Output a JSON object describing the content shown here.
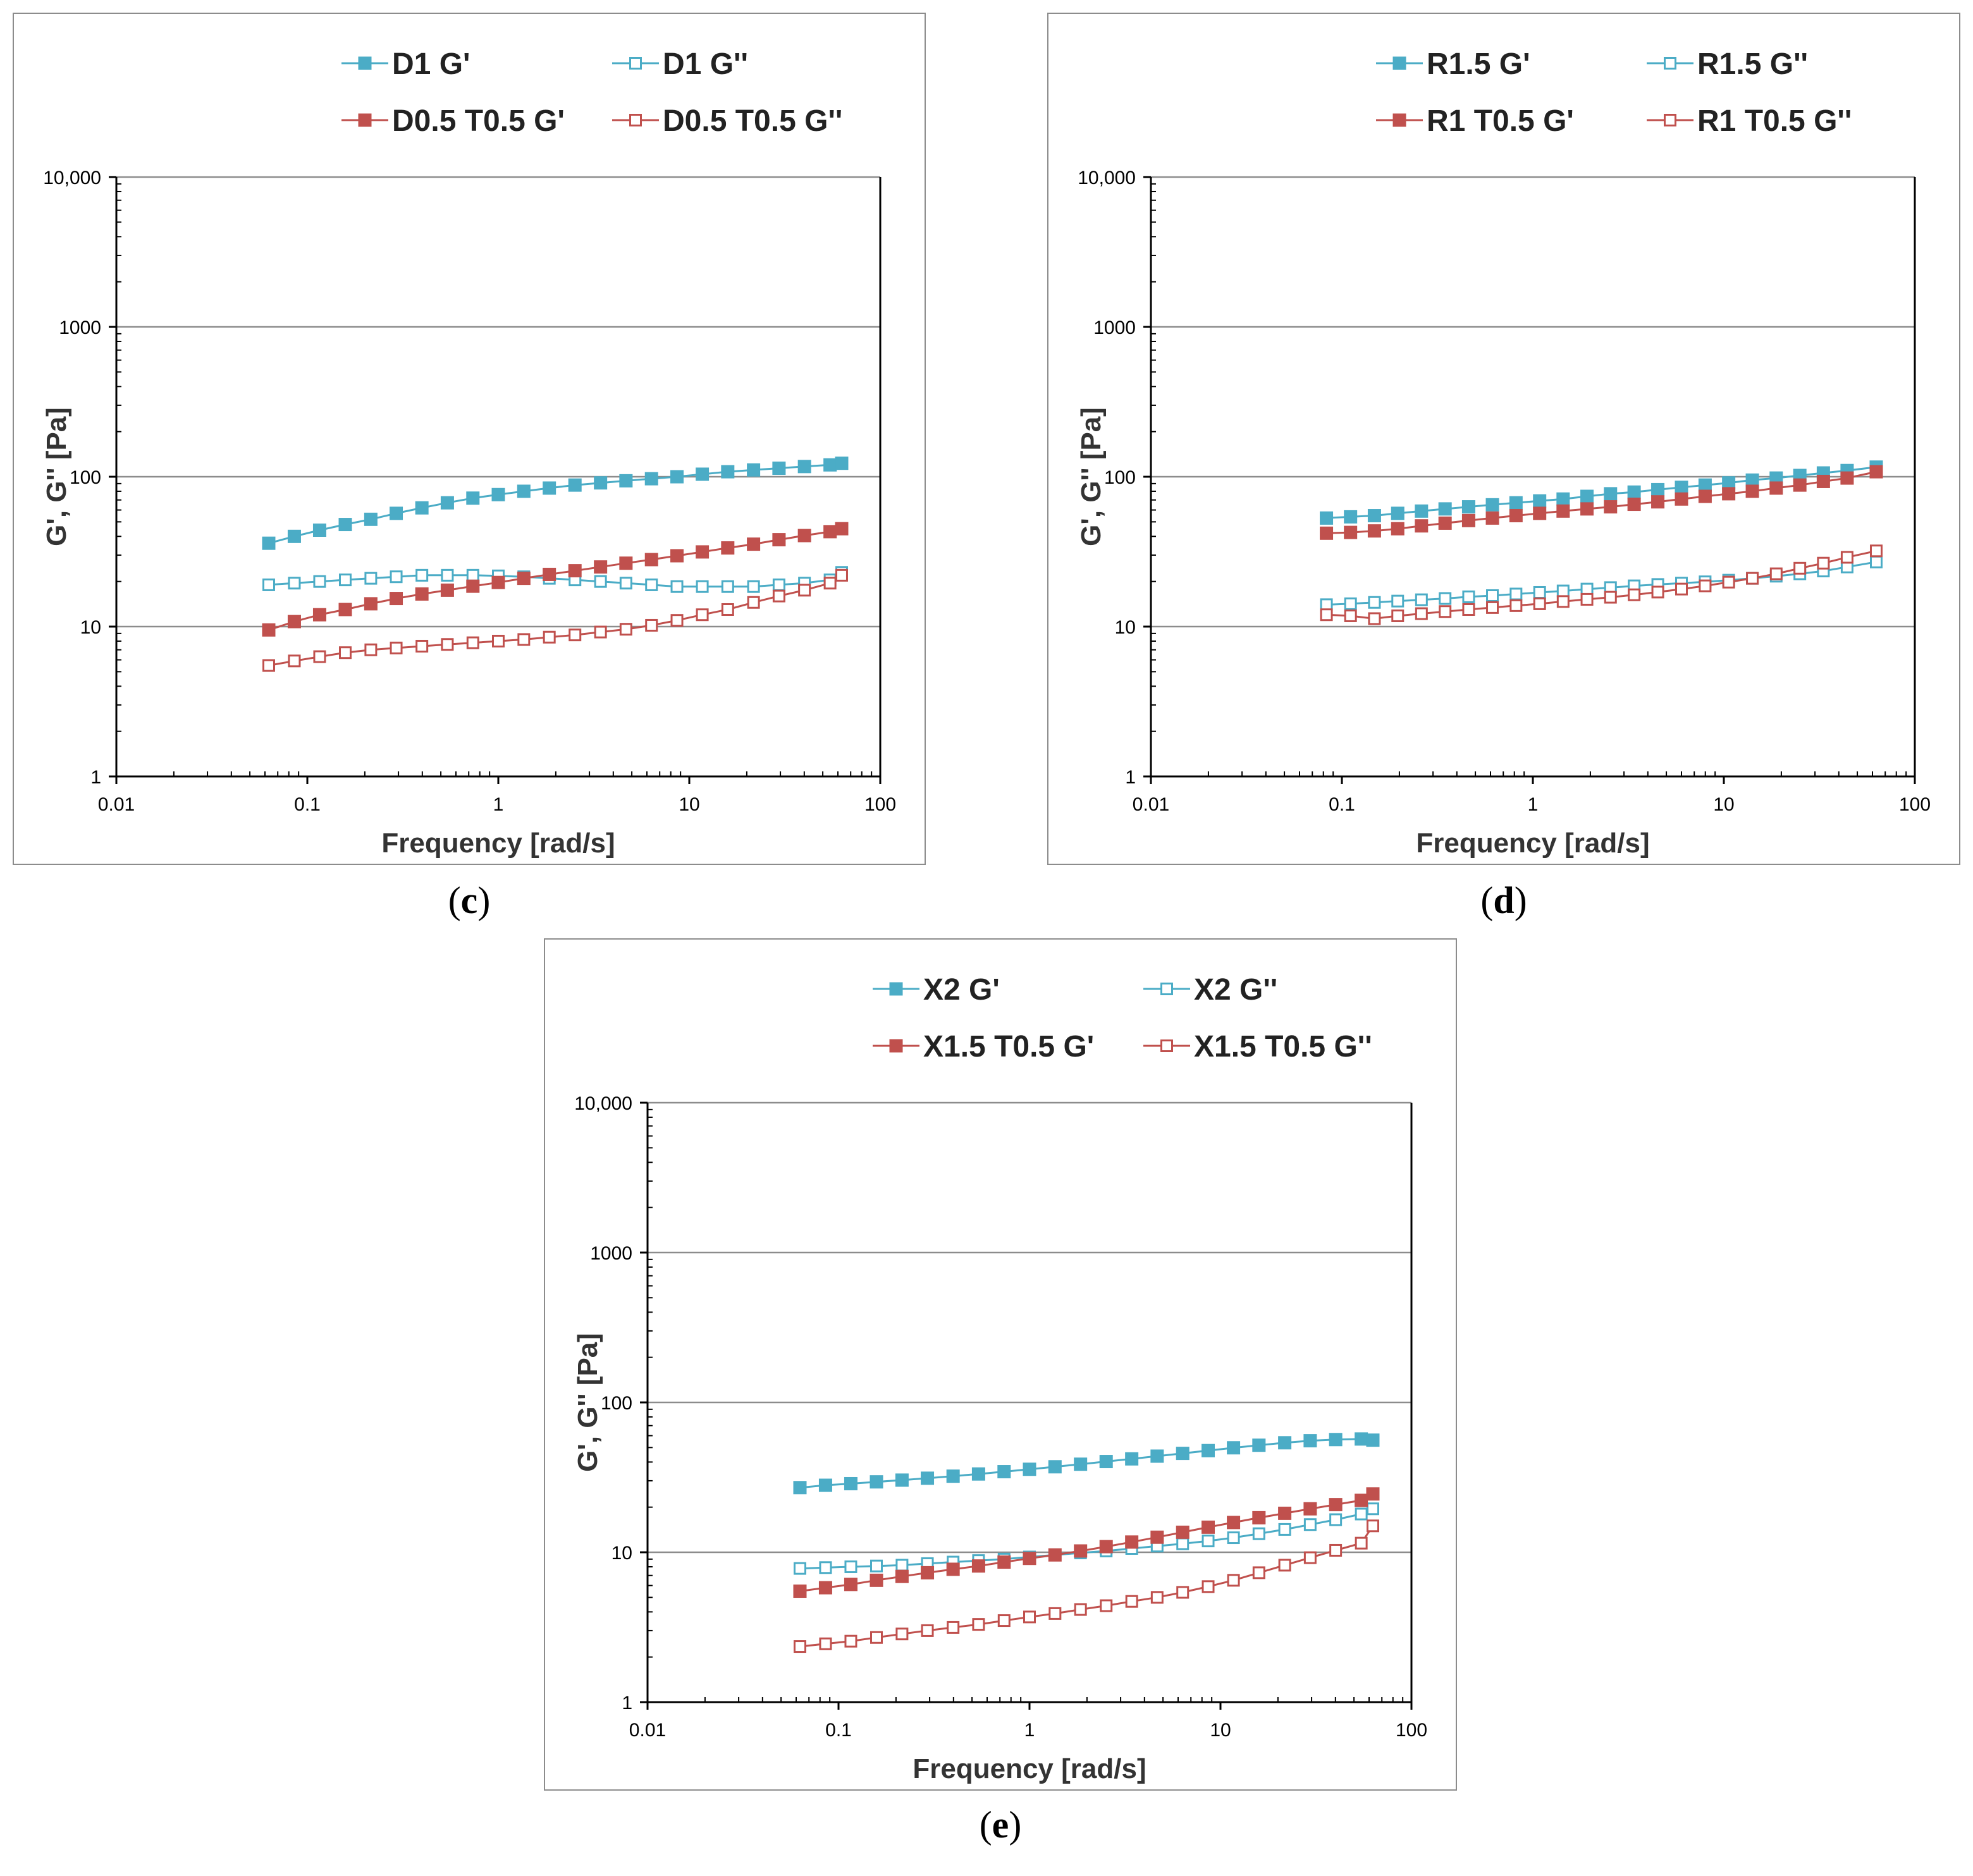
{
  "figure": {
    "panel_labels": [
      "c",
      "d",
      "e"
    ],
    "paren_open": "(",
    "paren_close": ")"
  },
  "colors": {
    "blue": "#4bacc6",
    "red": "#c0504d",
    "grid": "#8c8c8c",
    "axis": "#000000"
  },
  "chart_data": [
    {
      "type": "line",
      "panel": "c",
      "xlabel": "Frequency [rad/s]",
      "ylabel": "G', G'' [Pa]",
      "xscale": "log",
      "yscale": "log",
      "xlim": [
        0.01,
        100
      ],
      "ylim": [
        1,
        10000
      ],
      "xticks": [
        0.01,
        0.1,
        1,
        10,
        100
      ],
      "xtick_labels": [
        "0.01",
        "0.1",
        "1",
        "10",
        "100"
      ],
      "yticks": [
        1,
        10,
        100,
        1000,
        10000
      ],
      "ytick_labels": [
        "1",
        "10",
        "100",
        "1000",
        "10,000"
      ],
      "grid": "horizontal major lines",
      "legend_position": "top",
      "x": [
        0.0628,
        0.0855,
        0.116,
        0.158,
        0.215,
        0.292,
        0.398,
        0.541,
        0.736,
        1.0,
        1.36,
        1.85,
        2.52,
        3.43,
        4.66,
        6.34,
        8.62,
        11.7,
        15.9,
        21.7,
        29.5,
        40.1,
        54.6,
        62.8
      ],
      "series": [
        {
          "name": "D1 G'",
          "color": "blue",
          "filled": true,
          "values": [
            36,
            40,
            44,
            48,
            52,
            57,
            62,
            67,
            72,
            76,
            80,
            84,
            88,
            91,
            94,
            97,
            100,
            104,
            108,
            111,
            114,
            117,
            120,
            123
          ]
        },
        {
          "name": "D1 G''",
          "color": "blue",
          "filled": false,
          "values": [
            19,
            19.5,
            20,
            20.5,
            21,
            21.5,
            22,
            22,
            22,
            21.8,
            21.5,
            21,
            20.5,
            20,
            19.5,
            19,
            18.5,
            18.5,
            18.5,
            18.5,
            19,
            19.5,
            20.5,
            23
          ]
        },
        {
          "name": "D0.5 T0.5 G'",
          "color": "red",
          "filled": true,
          "values": [
            9.5,
            10.8,
            12,
            13,
            14.2,
            15.4,
            16.5,
            17.5,
            18.6,
            19.7,
            21,
            22.3,
            23.6,
            25,
            26.5,
            28,
            29.7,
            31.5,
            33.5,
            35.5,
            38,
            40.5,
            43,
            45
          ]
        },
        {
          "name": "D0.5 T0.5 G''",
          "color": "red",
          "filled": false,
          "values": [
            5.5,
            5.9,
            6.3,
            6.7,
            7.0,
            7.2,
            7.4,
            7.6,
            7.8,
            8.0,
            8.2,
            8.5,
            8.8,
            9.2,
            9.6,
            10.2,
            11,
            12,
            13,
            14.5,
            16,
            17.5,
            19.5,
            22
          ]
        }
      ]
    },
    {
      "type": "line",
      "panel": "d",
      "xlabel": "Frequency [rad/s]",
      "ylabel": "G', G'' [Pa]",
      "xscale": "log",
      "yscale": "log",
      "xlim": [
        0.01,
        100
      ],
      "ylim": [
        1,
        10000
      ],
      "xticks": [
        0.01,
        0.1,
        1,
        10,
        100
      ],
      "xtick_labels": [
        "0.01",
        "0.1",
        "1",
        "10",
        "100"
      ],
      "yticks": [
        1,
        10,
        100,
        1000,
        10000
      ],
      "ytick_labels": [
        "1",
        "10",
        "100",
        "1000",
        "10,000"
      ],
      "grid": "horizontal major lines",
      "legend_position": "top",
      "x": [
        0.083,
        0.111,
        0.148,
        0.196,
        0.261,
        0.347,
        0.461,
        0.614,
        0.816,
        1.085,
        1.44,
        1.92,
        2.55,
        3.39,
        4.51,
        6.0,
        7.98,
        10.6,
        14.1,
        18.8,
        25.0,
        33.2,
        44.2,
        62.8
      ],
      "series": [
        {
          "name": "R1.5 G'",
          "color": "blue",
          "filled": true,
          "values": [
            53,
            54,
            55,
            57,
            59,
            61,
            63,
            65,
            67,
            69,
            71,
            74,
            77,
            79,
            82,
            85,
            88,
            91,
            95,
            98,
            102,
            106,
            110,
            116
          ]
        },
        {
          "name": "R1.5 G''",
          "color": "blue",
          "filled": false,
          "values": [
            14,
            14.2,
            14.5,
            14.8,
            15.1,
            15.4,
            15.8,
            16.1,
            16.5,
            16.9,
            17.3,
            17.8,
            18.2,
            18.7,
            19.1,
            19.5,
            19.9,
            20.4,
            21,
            21.7,
            22.5,
            23.5,
            25,
            27
          ]
        },
        {
          "name": "R1 T0.5 G'",
          "color": "red",
          "filled": true,
          "values": [
            42,
            42.5,
            43.5,
            45,
            47,
            49,
            51,
            53,
            55,
            57,
            59,
            61,
            63,
            65.5,
            68,
            71,
            74,
            77,
            80,
            84,
            88,
            93,
            98,
            108
          ]
        },
        {
          "name": "R1 T0.5 G''",
          "color": "red",
          "filled": false,
          "values": [
            12,
            11.8,
            11.3,
            11.8,
            12.2,
            12.6,
            13,
            13.4,
            13.8,
            14.2,
            14.7,
            15.2,
            15.7,
            16.3,
            17,
            17.8,
            18.7,
            19.8,
            21,
            22.5,
            24.5,
            26.5,
            29,
            32
          ]
        }
      ]
    },
    {
      "type": "line",
      "panel": "e",
      "xlabel": "Frequency [rad/s]",
      "ylabel": "G', G'' [Pa]",
      "xscale": "log",
      "yscale": "log",
      "xlim": [
        0.01,
        100
      ],
      "ylim": [
        1,
        10000
      ],
      "xticks": [
        0.01,
        0.1,
        1,
        10,
        100
      ],
      "xtick_labels": [
        "0.01",
        "0.1",
        "1",
        "10",
        "100"
      ],
      "yticks": [
        1,
        10,
        100,
        1000,
        10000
      ],
      "ytick_labels": [
        "1",
        "10",
        "100",
        "1000",
        "10,000"
      ],
      "grid": "horizontal major lines",
      "legend_position": "top",
      "x": [
        0.0628,
        0.0855,
        0.116,
        0.158,
        0.215,
        0.292,
        0.398,
        0.541,
        0.736,
        1.0,
        1.36,
        1.85,
        2.52,
        3.43,
        4.66,
        6.34,
        8.62,
        11.7,
        15.9,
        21.7,
        29.5,
        40.1,
        54.6,
        62.8
      ],
      "series": [
        {
          "name": "X2 G'",
          "color": "blue",
          "filled": true,
          "values": [
            27,
            28,
            28.7,
            29.5,
            30.3,
            31.2,
            32.2,
            33.3,
            34.5,
            35.8,
            37.2,
            38.7,
            40.3,
            42,
            43.8,
            45.7,
            47.7,
            49.8,
            51.8,
            53.8,
            55.5,
            56.5,
            57,
            56
          ]
        },
        {
          "name": "X2 G''",
          "color": "blue",
          "filled": false,
          "values": [
            7.8,
            7.9,
            8.0,
            8.1,
            8.2,
            8.4,
            8.6,
            8.8,
            9.0,
            9.3,
            9.6,
            9.9,
            10.2,
            10.6,
            11,
            11.4,
            11.9,
            12.5,
            13.3,
            14.2,
            15.3,
            16.5,
            18,
            19.5
          ]
        },
        {
          "name": "X1.5 T0.5 G'",
          "color": "red",
          "filled": true,
          "values": [
            5.5,
            5.8,
            6.1,
            6.5,
            6.9,
            7.3,
            7.7,
            8.1,
            8.6,
            9.1,
            9.6,
            10.2,
            10.9,
            11.7,
            12.6,
            13.6,
            14.7,
            15.8,
            17,
            18.2,
            19.5,
            20.8,
            22.2,
            24.5
          ]
        },
        {
          "name": "X1.5 T0.5 G''",
          "color": "red",
          "filled": false,
          "values": [
            2.35,
            2.45,
            2.55,
            2.7,
            2.85,
            3.0,
            3.15,
            3.3,
            3.5,
            3.7,
            3.9,
            4.15,
            4.4,
            4.7,
            5.0,
            5.4,
            5.9,
            6.5,
            7.3,
            8.2,
            9.2,
            10.3,
            11.5,
            15
          ]
        }
      ]
    }
  ]
}
